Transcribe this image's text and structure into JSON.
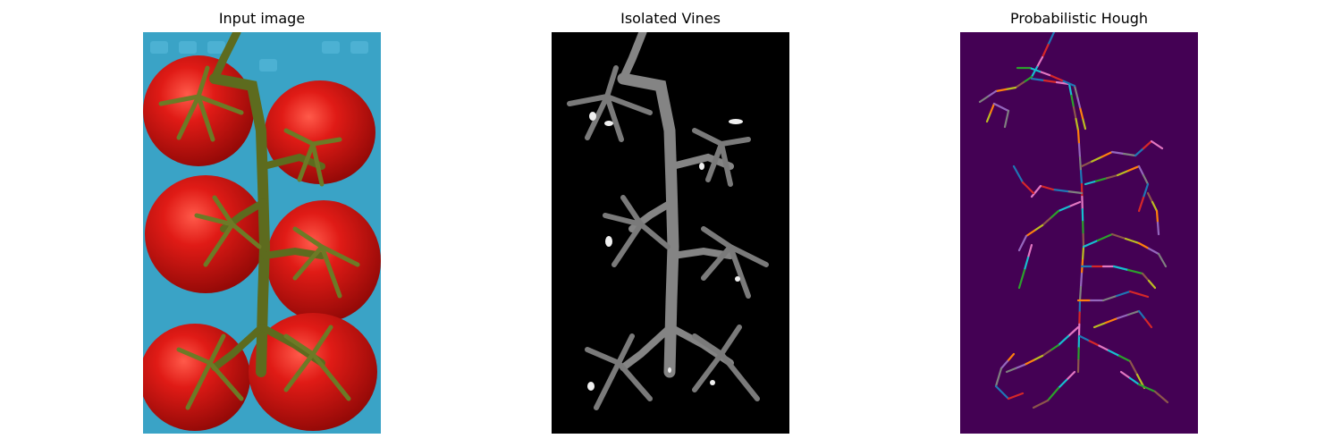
{
  "figure": {
    "panels": [
      {
        "id": "input",
        "title": "Input image"
      },
      {
        "id": "isolated",
        "title": "Isolated Vines"
      },
      {
        "id": "hough",
        "title": "Probabilistic Hough"
      }
    ],
    "colors": {
      "basket": "#3aa3c6",
      "tomato": "#d21412",
      "vine": "#5d6b1e",
      "mask_background": "#000000",
      "hough_background": "#440154",
      "hough_lines": [
        "#1f77b4",
        "#ff7f0e",
        "#2ca02c",
        "#d62728",
        "#9467bd",
        "#8c564b",
        "#e377c2",
        "#7f7f7f",
        "#bcbd22",
        "#17becf"
      ]
    }
  }
}
